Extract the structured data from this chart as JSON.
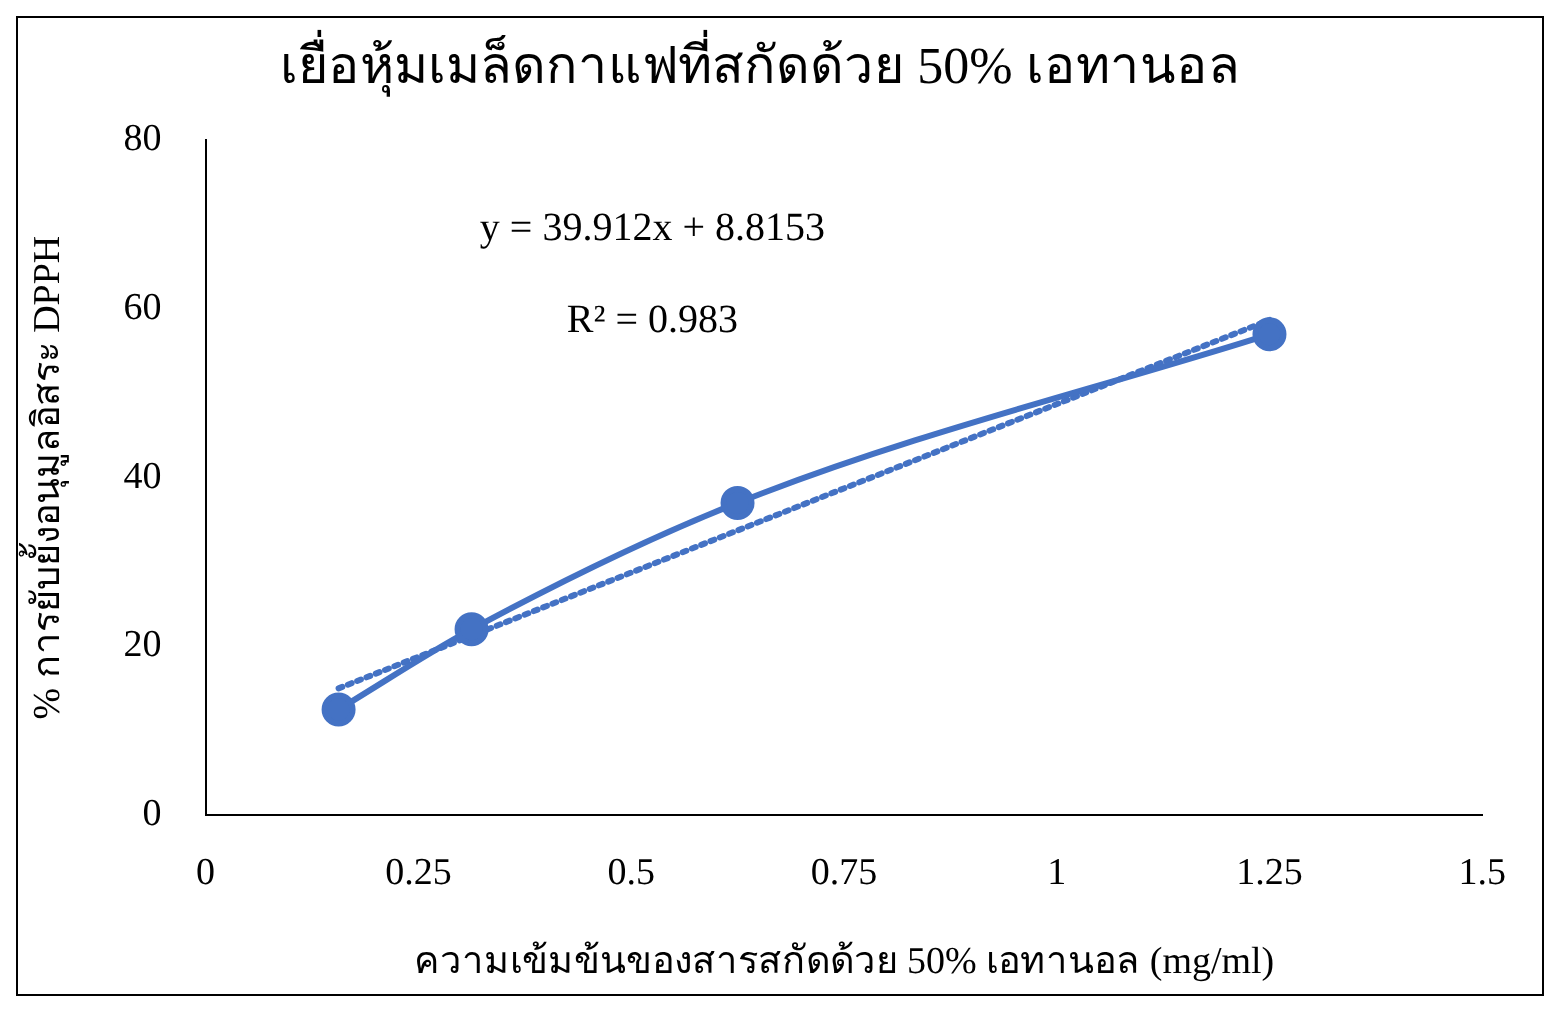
{
  "chart_data": {
    "type": "line",
    "title": "เยื่อหุ้มเมล็ดกาแฟที่สกัดด้วย 50% เอทานอล",
    "xlabel": "ความเข้มข้นของสารสกัดด้วย 50% เอทานอล (mg/ml)",
    "ylabel": "% การยับยั้งอนุมูลอิสระ DPPH",
    "annotations": [
      "y = 39.912x + 8.8153",
      "R² = 0.983"
    ],
    "xlim": [
      0,
      1.5
    ],
    "xticks": [
      0,
      0.25,
      0.5,
      0.75,
      1,
      1.25,
      1.5
    ],
    "ylim": [
      0,
      80
    ],
    "yticks": [
      0,
      20,
      40,
      60,
      80
    ],
    "grid": false,
    "legend": false,
    "series": [
      {
        "color": "#4472c4",
        "x": [
          0.15625,
          0.3125,
          0.625,
          1.25
        ],
        "values": [
          12.5,
          22,
          37,
          57
        ],
        "marker": "circle",
        "line_style": "solid"
      },
      {
        "color": "#4472c4",
        "x": [
          0.15625,
          1.25
        ],
        "values": [
          15,
          58.7
        ],
        "marker": "none",
        "line_style": "dotted"
      }
    ]
  }
}
